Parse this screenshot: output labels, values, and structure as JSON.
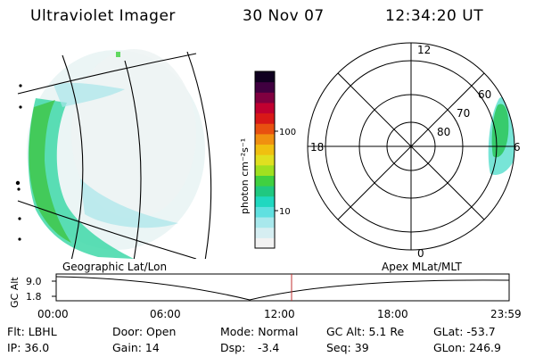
{
  "header": {
    "title": "Ultraviolet Imager",
    "date": "30 Nov 07",
    "time": "12:34:20 UT"
  },
  "geo_panel": {
    "label": "Geographic Lat/Lon"
  },
  "colorbar": {
    "label": "photon cm⁻²s⁻¹",
    "ticks": [
      "100",
      "10"
    ],
    "scale": "log",
    "colors": [
      "#f2f2f2",
      "#d6eef2",
      "#a8e8ec",
      "#60e0e0",
      "#20d8c0",
      "#20c880",
      "#40d040",
      "#a0e020",
      "#e0e020",
      "#f0c010",
      "#f09010",
      "#e85010",
      "#d81818",
      "#c00030",
      "#800040",
      "#400040",
      "#100020"
    ]
  },
  "polar_panel": {
    "label": "Apex MLat/MLT",
    "mlt_labels": {
      "top": "12",
      "bottom": "0",
      "left": "18",
      "right": "6"
    },
    "lat_labels": [
      "60",
      "70",
      "80"
    ]
  },
  "altitude_plot": {
    "ylabel": "GC Alt",
    "yticks": [
      "9.0",
      "1.8"
    ],
    "xticks": [
      "00:00",
      "06:00",
      "12:00",
      "18:00",
      "23:59"
    ],
    "current_time_marker": "12:34"
  },
  "status": {
    "row1": {
      "filter": "Flt: LBHL",
      "door": "Door: Open",
      "mode": "Mode: Normal",
      "gc_alt": "GC Alt: 5.1 Re",
      "glat": "GLat: -53.7"
    },
    "row2": {
      "ip": "IP: 36.0",
      "gain": "Gain: 14",
      "dsp_label": "Dsp:",
      "dsp_value": "-3.4",
      "seq": "Seq: 39",
      "glon": "GLon: 246.9"
    }
  }
}
